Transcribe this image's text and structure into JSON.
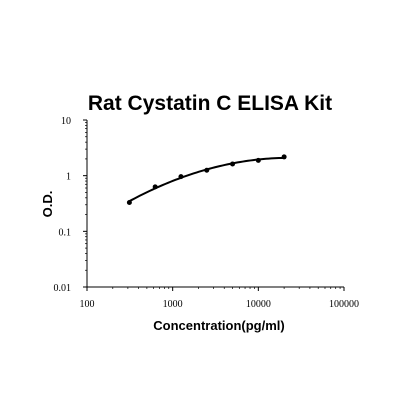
{
  "chart_data": {
    "type": "scatter",
    "title": "Rat Cystatin C ELISA Kit",
    "xlabel": "Concentration(pg/ml)",
    "ylabel": "O.D.",
    "x_scale": "log",
    "y_scale": "log",
    "xlim": [
      100,
      100000
    ],
    "ylim": [
      0.01,
      10
    ],
    "x_ticks": [
      100,
      1000,
      10000,
      100000
    ],
    "y_ticks": [
      0.01,
      0.1,
      1,
      10
    ],
    "x_tick_labels": [
      "100",
      "1000",
      "10000",
      "100000"
    ],
    "y_tick_labels": [
      "0.01",
      "0.1",
      "1",
      "10"
    ],
    "grid": false,
    "legend": "none",
    "series": [
      {
        "x": [
          312.5,
          625,
          1250,
          2500,
          5000,
          10000,
          20000
        ],
        "y": [
          0.33,
          0.63,
          0.96,
          1.25,
          1.62,
          1.88,
          2.17
        ]
      }
    ],
    "fit_line": true,
    "colors": {
      "marker": "#000000",
      "line": "#000000",
      "axis": "#000000",
      "background": "#ffffff"
    }
  }
}
